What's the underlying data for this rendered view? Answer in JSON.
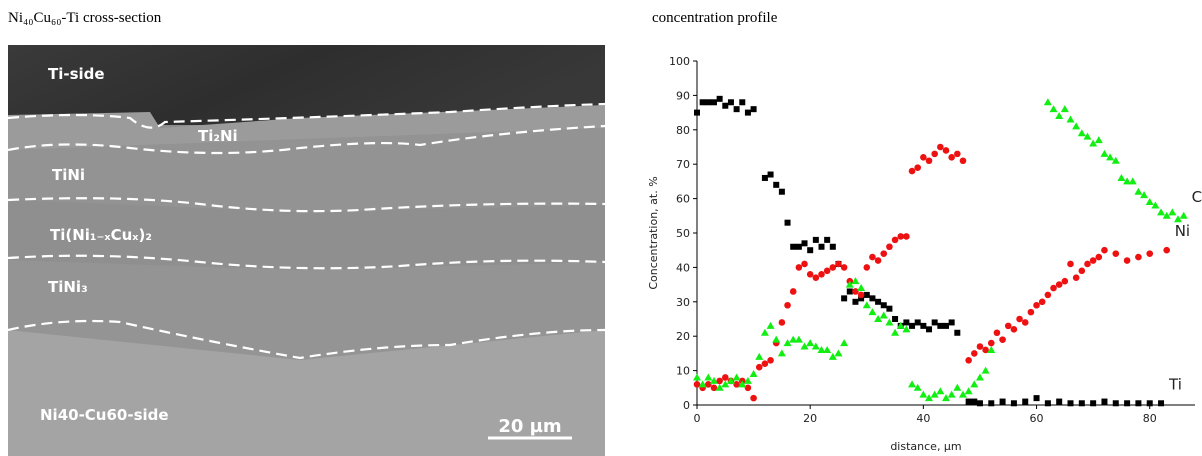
{
  "image": {
    "title": "Ni₄₀Cu₆₀-Ti cross-section",
    "labels": [
      "Ti-side",
      "Ti₂Ni",
      "TiNi",
      "Ti(Ni₁₋ₓCuₓ)₂",
      "TiNi₃",
      "Ni40-Cu60-side"
    ],
    "scale_bar": "20 µm"
  },
  "chart_data": {
    "type": "scatter",
    "title": "concentration profile",
    "x_label": "distance, µm",
    "y_label": "Concentration, at. %",
    "xlim": [
      0,
      88
    ],
    "ylim": [
      0,
      100
    ],
    "xticks": [
      0,
      20,
      40,
      60,
      80
    ],
    "yticks": [
      0,
      10,
      20,
      30,
      40,
      50,
      60,
      70,
      80,
      90,
      100
    ],
    "grid": false,
    "series": [
      {
        "name": "Ti",
        "color": "#000000",
        "marker": "square",
        "x": [
          0,
          1,
          2,
          3,
          4,
          5,
          6,
          7,
          8,
          9,
          10,
          12,
          13,
          14,
          15,
          16,
          17,
          18,
          19,
          20,
          21,
          22,
          23,
          24,
          25,
          26,
          27,
          28,
          29,
          30,
          31,
          32,
          33,
          34,
          35,
          36,
          37,
          38,
          39,
          40,
          41,
          42,
          43,
          44,
          45,
          46,
          48,
          49,
          50,
          52,
          54,
          56,
          58,
          60,
          62,
          64,
          66,
          68,
          70,
          72,
          74,
          76,
          78,
          80,
          82
        ],
        "values": [
          85,
          88,
          88,
          88,
          89,
          87,
          88,
          86,
          88,
          85,
          86,
          66,
          67,
          64,
          62,
          53,
          46,
          46,
          47,
          45,
          48,
          46,
          48,
          46,
          41,
          31,
          33,
          30,
          31,
          32,
          31,
          30,
          29,
          28,
          25,
          23,
          24,
          23,
          24,
          23,
          22,
          24,
          23,
          23,
          24,
          21,
          1,
          1,
          0.5,
          0.5,
          1,
          0.5,
          1,
          2,
          0.5,
          1,
          0.5,
          0.5,
          0.5,
          1,
          0.5,
          0.5,
          0.5,
          0.5,
          0.5
        ]
      },
      {
        "name": "Ni",
        "color": "#ee1111",
        "marker": "circle",
        "x": [
          0,
          1,
          2,
          3,
          4,
          5,
          6,
          7,
          8,
          9,
          10,
          11,
          12,
          13,
          14,
          15,
          16,
          17,
          18,
          19,
          20,
          21,
          22,
          23,
          24,
          25,
          26,
          27,
          28,
          29,
          30,
          31,
          32,
          33,
          34,
          35,
          36,
          37,
          38,
          39,
          40,
          41,
          42,
          43,
          44,
          45,
          46,
          47,
          48,
          49,
          50,
          51,
          52,
          53,
          54,
          55,
          56,
          57,
          58,
          59,
          60,
          61,
          62,
          63,
          64,
          65,
          66,
          67,
          68,
          69,
          70,
          71,
          72,
          74,
          76,
          78,
          80,
          83
        ],
        "values": [
          6,
          5,
          6,
          5,
          7,
          8,
          7,
          6,
          7,
          5,
          2,
          11,
          12,
          13,
          18,
          24,
          29,
          33,
          40,
          41,
          38,
          37,
          38,
          39,
          40,
          41,
          40,
          36,
          33,
          32,
          40,
          43,
          42,
          44,
          46,
          48,
          49,
          49,
          68,
          69,
          72,
          71,
          73,
          75,
          74,
          72,
          73,
          71,
          13,
          15,
          17,
          16,
          18,
          21,
          19,
          23,
          22,
          25,
          24,
          27,
          29,
          30,
          32,
          34,
          35,
          36,
          41,
          37,
          39,
          41,
          42,
          43,
          45,
          44,
          42,
          43,
          44,
          45
        ]
      },
      {
        "name": "Cu",
        "color": "#11ee11",
        "marker": "triangle",
        "x": [
          0,
          1,
          2,
          3,
          4,
          5,
          6,
          7,
          8,
          9,
          10,
          11,
          12,
          13,
          14,
          15,
          16,
          17,
          18,
          19,
          20,
          21,
          22,
          23,
          24,
          25,
          26,
          27,
          28,
          29,
          30,
          31,
          32,
          33,
          34,
          35,
          36,
          37,
          38,
          39,
          40,
          41,
          42,
          43,
          44,
          45,
          46,
          47,
          48,
          49,
          50,
          51,
          52,
          62,
          63,
          64,
          65,
          66,
          67,
          68,
          69,
          70,
          71,
          72,
          73,
          74,
          75,
          76,
          77,
          78,
          79,
          80,
          81,
          82,
          83,
          84,
          85,
          86
        ],
        "values": [
          8,
          6,
          8,
          7,
          5,
          6,
          7,
          8,
          6,
          7,
          9,
          14,
          21,
          23,
          19,
          15,
          18,
          19,
          19,
          17,
          18,
          17,
          16,
          16,
          14,
          15,
          18,
          35,
          36,
          34,
          29,
          27,
          25,
          26,
          24,
          21,
          23,
          22,
          6,
          5,
          3,
          2,
          3,
          4,
          2,
          3,
          5,
          3,
          4,
          6,
          8,
          10,
          16,
          88,
          86,
          84,
          86,
          83,
          81,
          79,
          78,
          76,
          77,
          73,
          72,
          71,
          66,
          65,
          65,
          62,
          61,
          59,
          58,
          56,
          55,
          56,
          54,
          55
        ]
      }
    ]
  }
}
